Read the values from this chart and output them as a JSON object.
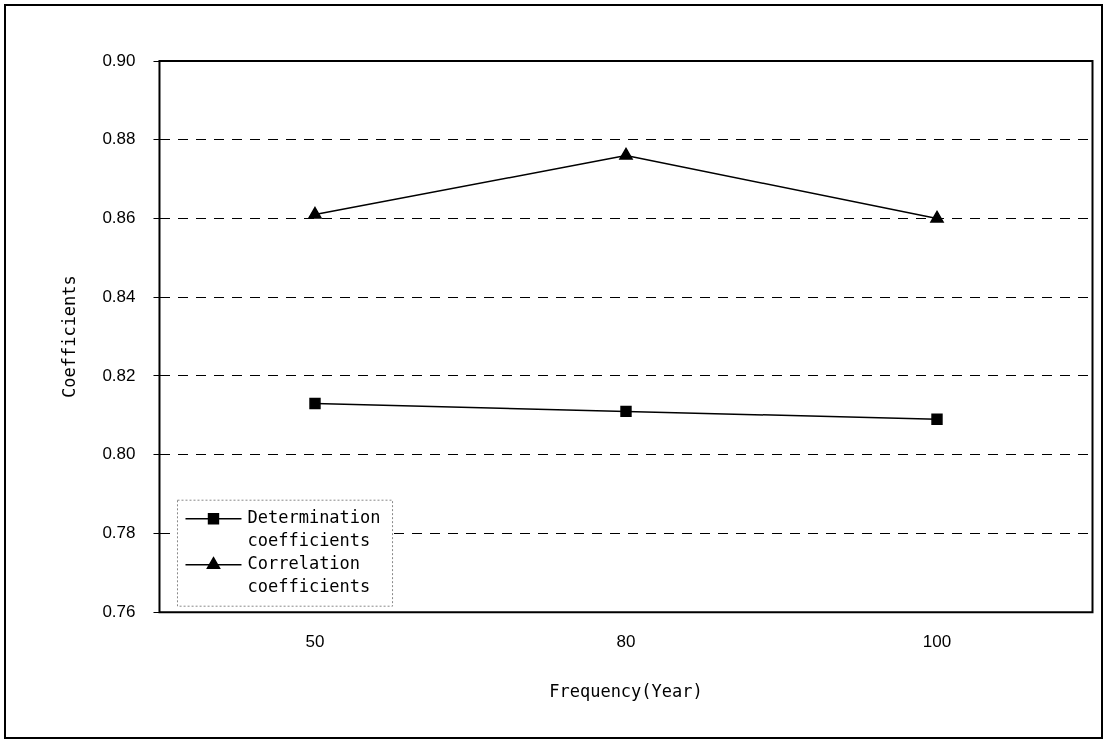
{
  "chart_data": {
    "type": "line",
    "xlabel": "Frequency(Year)",
    "ylabel": "Coefficients",
    "categories": [
      "50",
      "80",
      "100"
    ],
    "series": [
      {
        "name": "Determination coefficients",
        "color": "#000000",
        "marker": "square",
        "values": [
          0.813,
          0.811,
          0.809
        ]
      },
      {
        "name": "Correlation coefficients",
        "color": "#000000",
        "marker": "triangle",
        "values": [
          0.861,
          0.876,
          0.86
        ]
      }
    ],
    "ylim": [
      0.76,
      0.9
    ],
    "yticks": [
      {
        "value": 0.76,
        "label": "0.76"
      },
      {
        "value": 0.78,
        "label": "0.78"
      },
      {
        "value": 0.8,
        "label": "0.80"
      },
      {
        "value": 0.82,
        "label": "0.82"
      },
      {
        "value": 0.84,
        "label": "0.84"
      },
      {
        "value": 0.86,
        "label": "0.86"
      },
      {
        "value": 0.88,
        "label": "0.88"
      },
      {
        "value": 0.9,
        "label": "0.90"
      }
    ],
    "grid": "y",
    "legend": "bottom left",
    "line_style": "solid"
  }
}
